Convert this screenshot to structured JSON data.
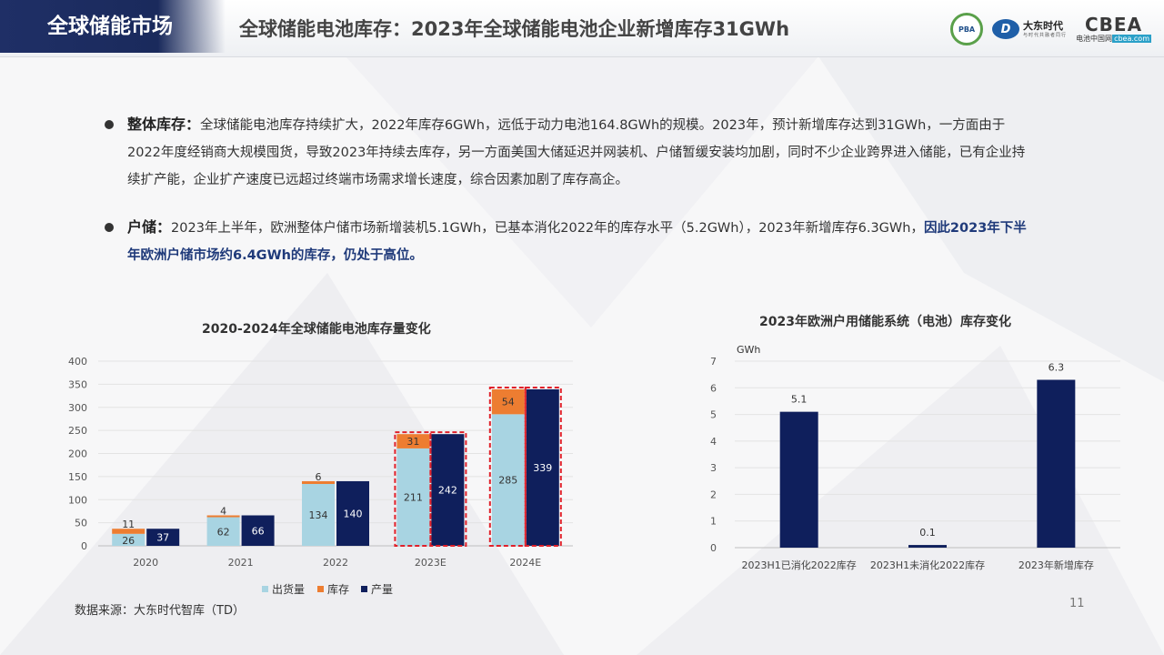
{
  "header": {
    "section": "全球储能市场",
    "title": "全球储能电池库存：2023年全球储能电池企业新增库存31GWh",
    "logos": {
      "pba": "PBA",
      "dasheng_mark": "D",
      "dasheng_name": "大东时代",
      "dasheng_sub": "与时代共融者同行",
      "cbea_name": "CBEA",
      "cbea_sub_prefix": "电池中国网",
      "cbea_sub_domain": "cbea.com"
    }
  },
  "bullets": [
    {
      "lead": "整体库存：",
      "text": "全球储能电池库存持续扩大，2022年库存6GWh，远低于动力电池164.8GWh的规模。2023年，预计新增库存达到31GWh，一方面由于2022年度经销商大规模囤货，导致2023年持续去库存，另一方面美国大储延迟并网装机、户储暂缓安装均加剧，同时不少企业跨界进入储能，已有企业持续扩产能，企业扩产速度已远超过终端市场需求增长速度，综合因素加剧了库存高企。",
      "highlight": ""
    },
    {
      "lead": "户储：",
      "text": "2023年上半年，欧洲整体户储市场新增装机5.1GWh，已基本消化2022年的库存水平（5.2GWh），2023年新增库存6.3GWh，",
      "highlight": "因此2023年下半年欧洲户储市场约6.4GWh的库存，仍处于高位。"
    }
  ],
  "chart_data": [
    {
      "type": "bar",
      "title": "2020-2024年全球储能电池库存量变化",
      "categories": [
        "2020",
        "2021",
        "2022",
        "2023E",
        "2024E"
      ],
      "series": [
        {
          "name": "出货量",
          "values": [
            26,
            62,
            134,
            211,
            285
          ],
          "color": "#a8d4e2",
          "stack": "a"
        },
        {
          "name": "库存",
          "values": [
            11,
            4,
            6,
            31,
            54
          ],
          "color": "#ed7d31",
          "stack": "a"
        },
        {
          "name": "产量",
          "values": [
            37,
            66,
            140,
            242,
            339
          ],
          "color": "#0f1f5c",
          "stack": "b"
        }
      ],
      "ylim": [
        0,
        400
      ],
      "yticks": [
        0,
        50,
        100,
        150,
        200,
        250,
        300,
        350,
        400
      ],
      "highlighted_categories": [
        "2023E",
        "2024E"
      ],
      "highlight_color": "#e0202a",
      "legend_position": "bottom"
    },
    {
      "type": "bar",
      "title": "2023年欧洲户用储能系统（电池）库存变化",
      "ylabel": "GWh",
      "categories": [
        "2023H1已消化2022库存",
        "2023H1未消化2022库存",
        "2023年新增库存"
      ],
      "values": [
        5.1,
        0.1,
        6.3
      ],
      "value_labels": [
        "5.1",
        "0.1",
        "6.3"
      ],
      "color": "#0f1f5c",
      "ylim": [
        0,
        7
      ],
      "yticks": [
        0,
        1,
        2,
        3,
        4,
        5,
        6,
        7
      ]
    }
  ],
  "source": "数据来源：大东时代智库（TD）",
  "page_number": "11",
  "colors": {
    "navy": "#1a2a5c",
    "accent_blue": "#1f3a7a"
  }
}
